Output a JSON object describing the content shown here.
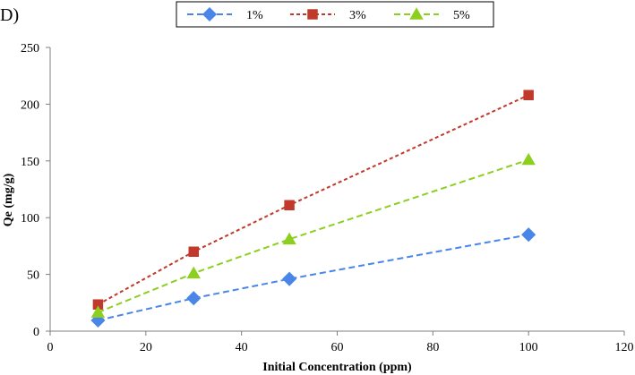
{
  "panel_label": "D)",
  "chart_data": {
    "type": "line",
    "title": "",
    "xlabel": "Initial Concentration (ppm)",
    "ylabel": "Qe (mg/g)",
    "xlim": [
      0,
      120
    ],
    "ylim": [
      0,
      250
    ],
    "xticks": [
      0,
      20,
      40,
      60,
      80,
      100,
      120
    ],
    "yticks": [
      0,
      50,
      100,
      150,
      200,
      250
    ],
    "grid": false,
    "legend_position": "top",
    "x": [
      10,
      30,
      50,
      100
    ],
    "series": [
      {
        "name": "1%",
        "values": [
          9.5,
          29,
          46,
          85
        ],
        "color": "#4a86e8",
        "marker": "diamond"
      },
      {
        "name": "3%",
        "values": [
          23.5,
          70,
          111,
          208
        ],
        "color": "#c0392b",
        "marker": "square"
      },
      {
        "name": "5%",
        "values": [
          16.5,
          51,
          81,
          151
        ],
        "color": "#8ccf1f",
        "marker": "triangle"
      }
    ]
  }
}
